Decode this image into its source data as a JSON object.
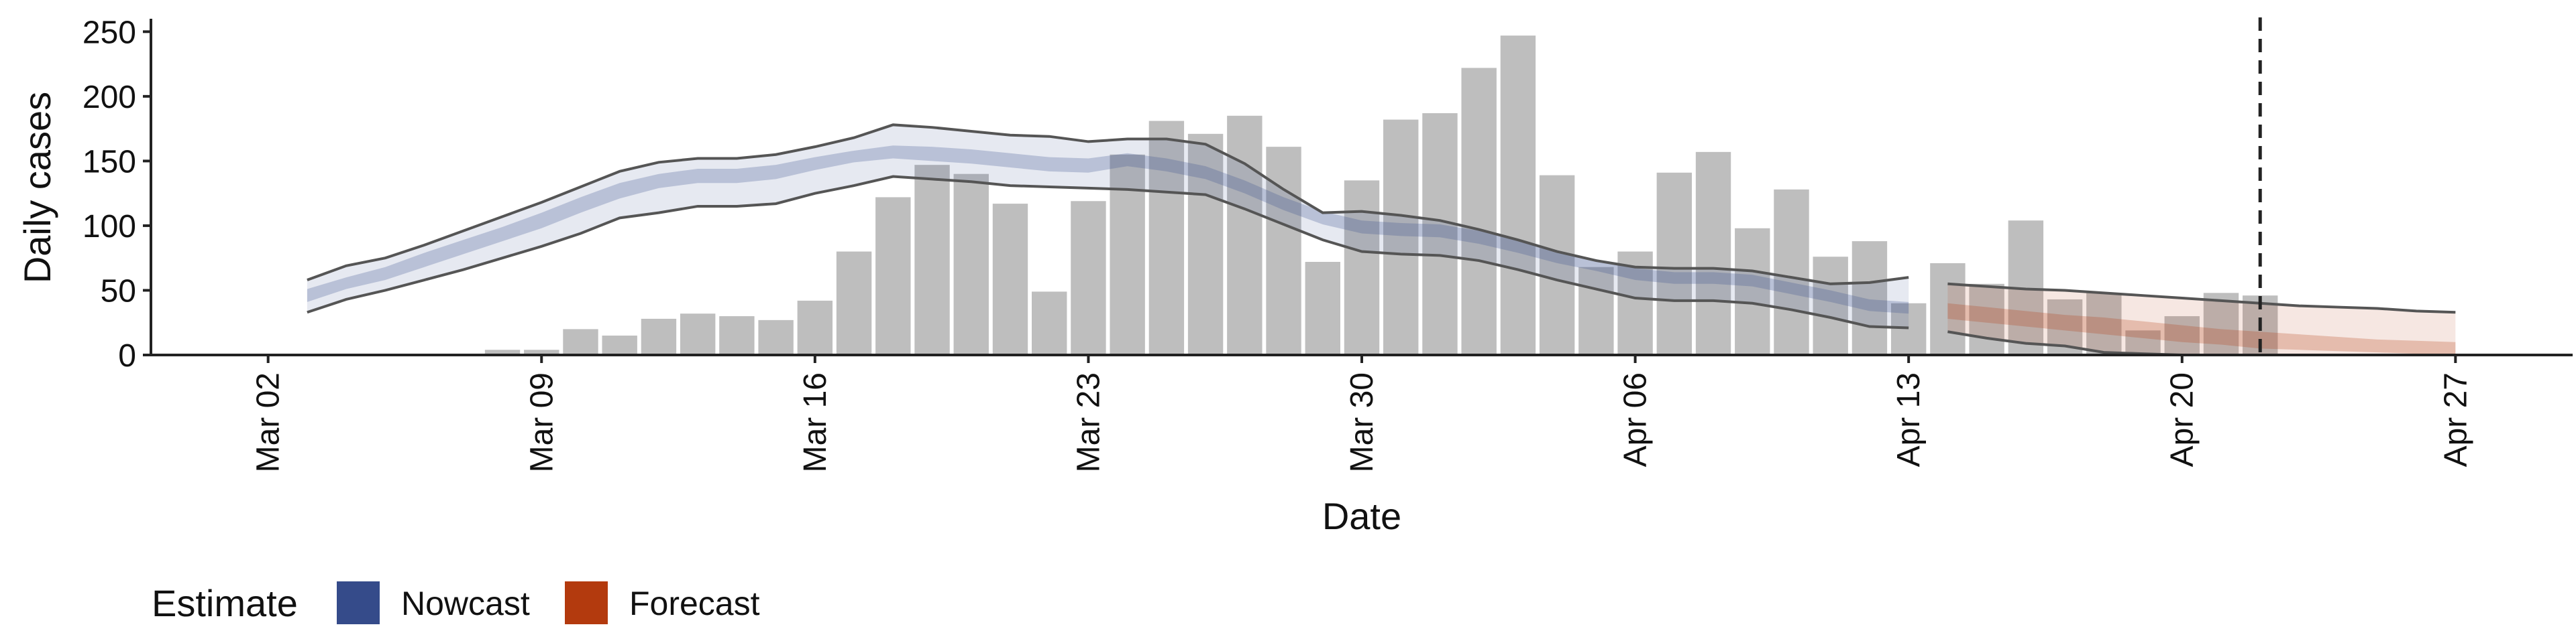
{
  "chart_data": {
    "type": "bar",
    "title": "",
    "xlabel": "Date",
    "ylabel": "Daily cases",
    "ylim": [
      0,
      260
    ],
    "xlim": [
      "2020-02-28",
      "2020-04-30"
    ],
    "y_ticks": [
      0,
      50,
      100,
      150,
      200,
      250
    ],
    "x_ticks": [
      {
        "date": "2020-03-02",
        "label": "Mar 02"
      },
      {
        "date": "2020-03-09",
        "label": "Mar 09"
      },
      {
        "date": "2020-03-16",
        "label": "Mar 16"
      },
      {
        "date": "2020-03-23",
        "label": "Mar 23"
      },
      {
        "date": "2020-03-30",
        "label": "Mar 30"
      },
      {
        "date": "2020-04-06",
        "label": "Apr 06"
      },
      {
        "date": "2020-04-13",
        "label": "Apr 13"
      },
      {
        "date": "2020-04-20",
        "label": "Apr 20"
      },
      {
        "date": "2020-04-27",
        "label": "Apr 27"
      }
    ],
    "grid": false,
    "bars": {
      "color": "#bebebe",
      "dates": [
        "2020-03-06",
        "2020-03-08",
        "2020-03-09",
        "2020-03-10",
        "2020-03-11",
        "2020-03-12",
        "2020-03-13",
        "2020-03-14",
        "2020-03-15",
        "2020-03-16",
        "2020-03-17",
        "2020-03-18",
        "2020-03-19",
        "2020-03-20",
        "2020-03-21",
        "2020-03-22",
        "2020-03-23",
        "2020-03-24",
        "2020-03-25",
        "2020-03-26",
        "2020-03-27",
        "2020-03-28",
        "2020-03-29",
        "2020-03-30",
        "2020-03-31",
        "2020-04-01",
        "2020-04-02",
        "2020-04-03",
        "2020-04-04",
        "2020-04-05",
        "2020-04-06",
        "2020-04-07",
        "2020-04-08",
        "2020-04-09",
        "2020-04-10",
        "2020-04-11",
        "2020-04-12",
        "2020-04-13",
        "2020-04-14",
        "2020-04-15",
        "2020-04-16",
        "2020-04-17",
        "2020-04-18",
        "2020-04-19",
        "2020-04-20",
        "2020-04-21",
        "2020-04-22"
      ],
      "values": [
        1,
        4,
        4,
        20,
        15,
        28,
        32,
        30,
        27,
        42,
        80,
        122,
        147,
        140,
        117,
        49,
        119,
        155,
        181,
        171,
        185,
        161,
        72,
        135,
        182,
        187,
        222,
        247,
        139,
        68,
        80,
        141,
        157,
        98,
        128,
        76,
        88,
        40,
        71,
        55,
        104,
        43,
        48,
        19,
        30,
        48,
        46
      ]
    },
    "series": [
      {
        "name": "Nowcast",
        "color": "#354b8a",
        "dates": [
          "2020-03-03",
          "2020-03-04",
          "2020-03-05",
          "2020-03-06",
          "2020-03-07",
          "2020-03-08",
          "2020-03-09",
          "2020-03-10",
          "2020-03-11",
          "2020-03-12",
          "2020-03-13",
          "2020-03-14",
          "2020-03-15",
          "2020-03-16",
          "2020-03-17",
          "2020-03-18",
          "2020-03-19",
          "2020-03-20",
          "2020-03-21",
          "2020-03-22",
          "2020-03-23",
          "2020-03-24",
          "2020-03-25",
          "2020-03-26",
          "2020-03-27",
          "2020-03-28",
          "2020-03-29",
          "2020-03-30",
          "2020-03-31",
          "2020-04-01",
          "2020-04-02",
          "2020-04-03",
          "2020-04-04",
          "2020-04-05",
          "2020-04-06",
          "2020-04-07",
          "2020-04-08",
          "2020-04-09",
          "2020-04-10",
          "2020-04-11",
          "2020-04-12",
          "2020-04-13"
        ],
        "lower90": [
          33,
          43,
          50,
          58,
          66,
          75,
          84,
          94,
          106,
          110,
          115,
          115,
          117,
          125,
          131,
          138,
          136,
          134,
          131,
          130,
          129,
          128,
          126,
          124,
          113,
          101,
          89,
          80,
          78,
          77,
          73,
          66,
          58,
          51,
          44,
          42,
          42,
          40,
          35,
          29,
          22,
          21
        ],
        "lower50": [
          41,
          51,
          58,
          68,
          78,
          88,
          98,
          110,
          121,
          129,
          133,
          133,
          136,
          143,
          149,
          152,
          150,
          148,
          145,
          142,
          141,
          146,
          142,
          136,
          125,
          112,
          101,
          94,
          92,
          91,
          86,
          79,
          71,
          65,
          58,
          55,
          55,
          53,
          47,
          41,
          34,
          32
        ],
        "upper50": [
          51,
          60,
          68,
          79,
          89,
          99,
          110,
          122,
          133,
          140,
          144,
          144,
          147,
          153,
          158,
          162,
          161,
          159,
          156,
          153,
          152,
          156,
          152,
          146,
          135,
          122,
          111,
          104,
          102,
          101,
          96,
          89,
          80,
          74,
          67,
          64,
          64,
          62,
          56,
          50,
          43,
          41
        ],
        "upper90": [
          58,
          69,
          75,
          85,
          96,
          107,
          118,
          130,
          142,
          149,
          152,
          152,
          155,
          161,
          168,
          178,
          176,
          173,
          170,
          169,
          165,
          167,
          167,
          163,
          148,
          128,
          110,
          111,
          108,
          104,
          97,
          89,
          80,
          73,
          68,
          67,
          67,
          65,
          60,
          55,
          56,
          60
        ]
      },
      {
        "name": "Forecast",
        "color": "#b33a0e",
        "dates": [
          "2020-04-14",
          "2020-04-15",
          "2020-04-16",
          "2020-04-17",
          "2020-04-18",
          "2020-04-19",
          "2020-04-20",
          "2020-04-21",
          "2020-04-22",
          "2020-04-23",
          "2020-04-24",
          "2020-04-25",
          "2020-04-26",
          "2020-04-27"
        ],
        "lower90": [
          18,
          13,
          9,
          7,
          2,
          1,
          0,
          0,
          0,
          0,
          0,
          0,
          0,
          0
        ],
        "lower50": [
          28,
          25,
          22,
          19,
          16,
          13,
          10,
          8,
          5,
          4,
          3,
          2,
          1,
          0
        ],
        "upper50": [
          40,
          37,
          34,
          31,
          29,
          26,
          23,
          20,
          18,
          16,
          14,
          12,
          11,
          10
        ],
        "upper90": [
          55,
          53,
          51,
          50,
          48,
          46,
          44,
          42,
          40,
          38,
          37,
          36,
          34,
          33
        ]
      }
    ],
    "vline": {
      "date": "2020-04-22",
      "style": "dashed"
    },
    "legend": {
      "title": "Estimate",
      "placement": "bottom-left",
      "entries": [
        {
          "label": "Nowcast",
          "color": "#354b8a"
        },
        {
          "label": "Forecast",
          "color": "#b33a0e"
        }
      ]
    }
  }
}
